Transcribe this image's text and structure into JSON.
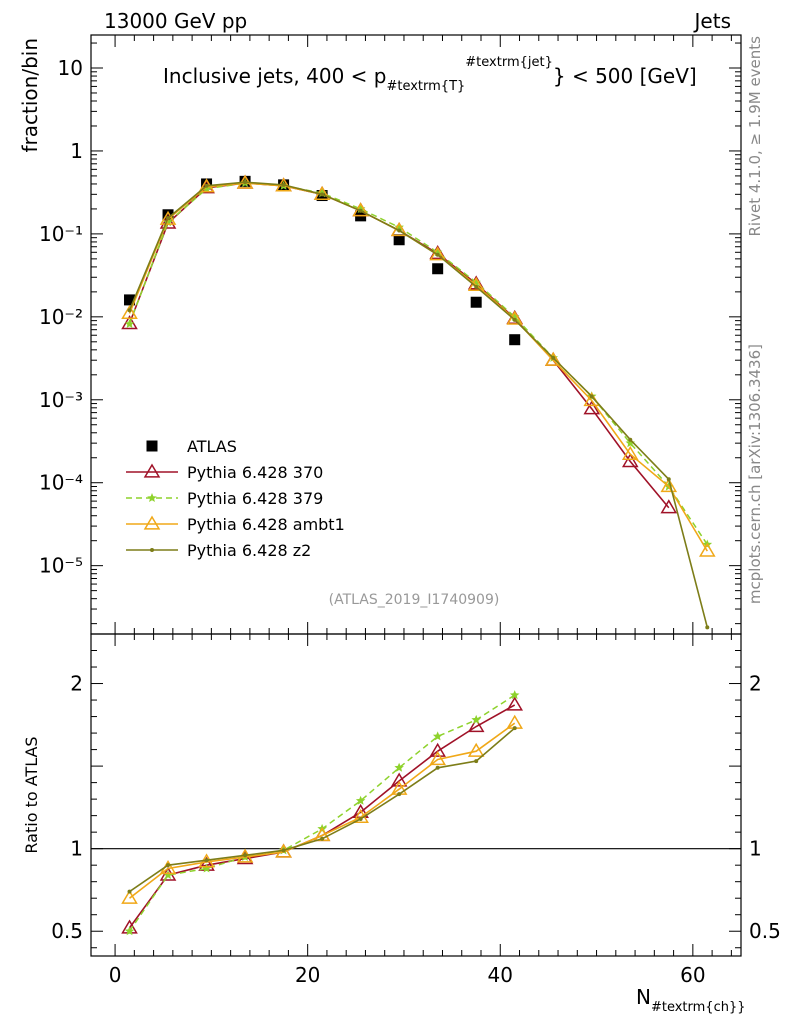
{
  "header": {
    "left": "13000 GeV pp",
    "right": "Jets"
  },
  "side_labels": {
    "rivet": "Rivet 4.1.0, ≥ 1.9M events",
    "mcplots": "mcplots.cern.ch [arXiv:1306.3436]"
  },
  "chart_data": [
    {
      "type": "line",
      "panel": "main",
      "title_parts": {
        "pre": "Inclusive jets, 400 < p",
        "sub": "#textrm{T}",
        "sup": "#textrm{jet}",
        "post": "} < 500 [GeV]"
      },
      "ylabel": "fraction/bin",
      "yscale": "log",
      "ylim": [
        1.5e-06,
        25
      ],
      "xlim": [
        -2.5,
        65
      ],
      "y_ticks": [
        {
          "value": 10,
          "label": "10"
        },
        {
          "value": 1,
          "label": "1"
        },
        {
          "value": 0.1,
          "label": "10⁻¹"
        },
        {
          "value": 0.01,
          "label": "10⁻²"
        },
        {
          "value": 0.001,
          "label": "10⁻³"
        },
        {
          "value": 0.0001,
          "label": "10⁻⁴"
        },
        {
          "value": 1e-05,
          "label": "10⁻⁵"
        }
      ],
      "watermark": "(ATLAS_2019_I1740909)",
      "legend_position": "lower-left",
      "series": [
        {
          "name": "ATLAS",
          "color": "#000000",
          "style": "square-markers",
          "x": [
            1.5,
            5.5,
            9.5,
            13.5,
            17.5,
            21.5,
            25.5,
            29.5,
            33.5,
            37.5,
            41.5
          ],
          "values": [
            0.016,
            0.17,
            0.4,
            0.43,
            0.39,
            0.29,
            0.165,
            0.085,
            0.038,
            0.015,
            0.0053
          ]
        },
        {
          "name": "Pythia 6.428 370",
          "color": "#a01228",
          "style": "solid-open-triangle",
          "x": [
            1.5,
            5.5,
            9.5,
            13.5,
            17.5,
            21.5,
            25.5,
            29.5,
            33.5,
            37.5,
            41.5,
            45.5,
            49.5,
            53.5,
            57.5
          ],
          "values": [
            0.0083,
            0.135,
            0.36,
            0.41,
            0.38,
            0.3,
            0.19,
            0.11,
            0.058,
            0.025,
            0.0096,
            0.003,
            0.00078,
            0.00018,
            5e-05
          ]
        },
        {
          "name": "Pythia 6.428 379",
          "color": "#8ed22c",
          "style": "dashed-star",
          "x": [
            1.5,
            5.5,
            9.5,
            13.5,
            17.5,
            21.5,
            25.5,
            29.5,
            33.5,
            37.5,
            41.5,
            45.5,
            49.5,
            53.5,
            57.5,
            61.5
          ],
          "values": [
            0.0082,
            0.138,
            0.35,
            0.41,
            0.38,
            0.31,
            0.2,
            0.12,
            0.06,
            0.026,
            0.01,
            0.0032,
            0.0011,
            0.0003,
            9e-05,
            1.8e-05
          ]
        },
        {
          "name": "Pythia 6.428 ambt1",
          "color": "#f0a818",
          "style": "solid-open-triangle",
          "x": [
            1.5,
            5.5,
            9.5,
            13.5,
            17.5,
            21.5,
            25.5,
            29.5,
            33.5,
            37.5,
            41.5,
            45.5,
            49.5,
            53.5,
            57.5,
            61.5
          ],
          "values": [
            0.011,
            0.15,
            0.37,
            0.41,
            0.38,
            0.3,
            0.19,
            0.11,
            0.056,
            0.024,
            0.0094,
            0.003,
            0.00098,
            0.00022,
            9e-05,
            1.5e-05
          ]
        },
        {
          "name": "Pythia 6.428 z2",
          "color": "#7d7d18",
          "style": "solid-dot",
          "x": [
            1.5,
            5.5,
            9.5,
            13.5,
            17.5,
            21.5,
            25.5,
            29.5,
            33.5,
            37.5,
            41.5,
            45.5,
            49.5,
            53.5,
            57.5,
            61.5
          ],
          "values": [
            0.012,
            0.155,
            0.38,
            0.42,
            0.39,
            0.3,
            0.19,
            0.11,
            0.056,
            0.023,
            0.0092,
            0.0032,
            0.0011,
            0.00033,
            0.00011,
            1.8e-06
          ]
        }
      ]
    },
    {
      "type": "line",
      "panel": "ratio",
      "ylabel": "Ratio to ATLAS",
      "xlabel_parts": {
        "pre": "N",
        "sub": "#textrm{ch}}"
      },
      "ylim": [
        0.35,
        2.3
      ],
      "xlim": [
        -2.5,
        65
      ],
      "y_ticks": [
        {
          "value": 0.5,
          "label": "0.5"
        },
        {
          "value": 1,
          "label": "1"
        },
        {
          "value": 2,
          "label": "2"
        }
      ],
      "x_ticks": [
        {
          "value": 0,
          "label": "0"
        },
        {
          "value": 20,
          "label": "20"
        },
        {
          "value": 40,
          "label": "40"
        },
        {
          "value": 60,
          "label": "60"
        }
      ],
      "reference_line": 1,
      "series": [
        {
          "name": "Pythia 6.428 370",
          "color": "#a01228",
          "style": "solid-open-triangle",
          "x": [
            1.5,
            5.5,
            9.5,
            13.5,
            17.5,
            21.5,
            25.5,
            29.5,
            33.5,
            37.5,
            41.5
          ],
          "values": [
            0.52,
            0.84,
            0.9,
            0.94,
            0.98,
            1.08,
            1.22,
            1.41,
            1.59,
            1.74,
            1.87
          ]
        },
        {
          "name": "Pythia 6.428 379",
          "color": "#8ed22c",
          "style": "dashed-star",
          "x": [
            1.5,
            5.5,
            9.5,
            13.5,
            17.5,
            21.5,
            25.5,
            29.5,
            33.5,
            37.5,
            41.5
          ],
          "values": [
            0.5,
            0.84,
            0.88,
            0.95,
            0.99,
            1.12,
            1.29,
            1.49,
            1.68,
            1.78,
            1.93
          ]
        },
        {
          "name": "Pythia 6.428 ambt1",
          "color": "#f0a818",
          "style": "solid-open-triangle",
          "x": [
            1.5,
            5.5,
            9.5,
            13.5,
            17.5,
            21.5,
            25.5,
            29.5,
            33.5,
            37.5,
            41.5
          ],
          "values": [
            0.7,
            0.88,
            0.92,
            0.95,
            0.98,
            1.08,
            1.19,
            1.36,
            1.54,
            1.59,
            1.76
          ]
        },
        {
          "name": "Pythia 6.428 z2",
          "color": "#7d7d18",
          "style": "solid-dot",
          "x": [
            1.5,
            5.5,
            9.5,
            13.5,
            17.5,
            21.5,
            25.5,
            29.5,
            33.5,
            37.5,
            41.5
          ],
          "values": [
            0.74,
            0.9,
            0.93,
            0.96,
            0.99,
            1.06,
            1.18,
            1.33,
            1.49,
            1.53,
            1.73
          ]
        }
      ]
    }
  ]
}
